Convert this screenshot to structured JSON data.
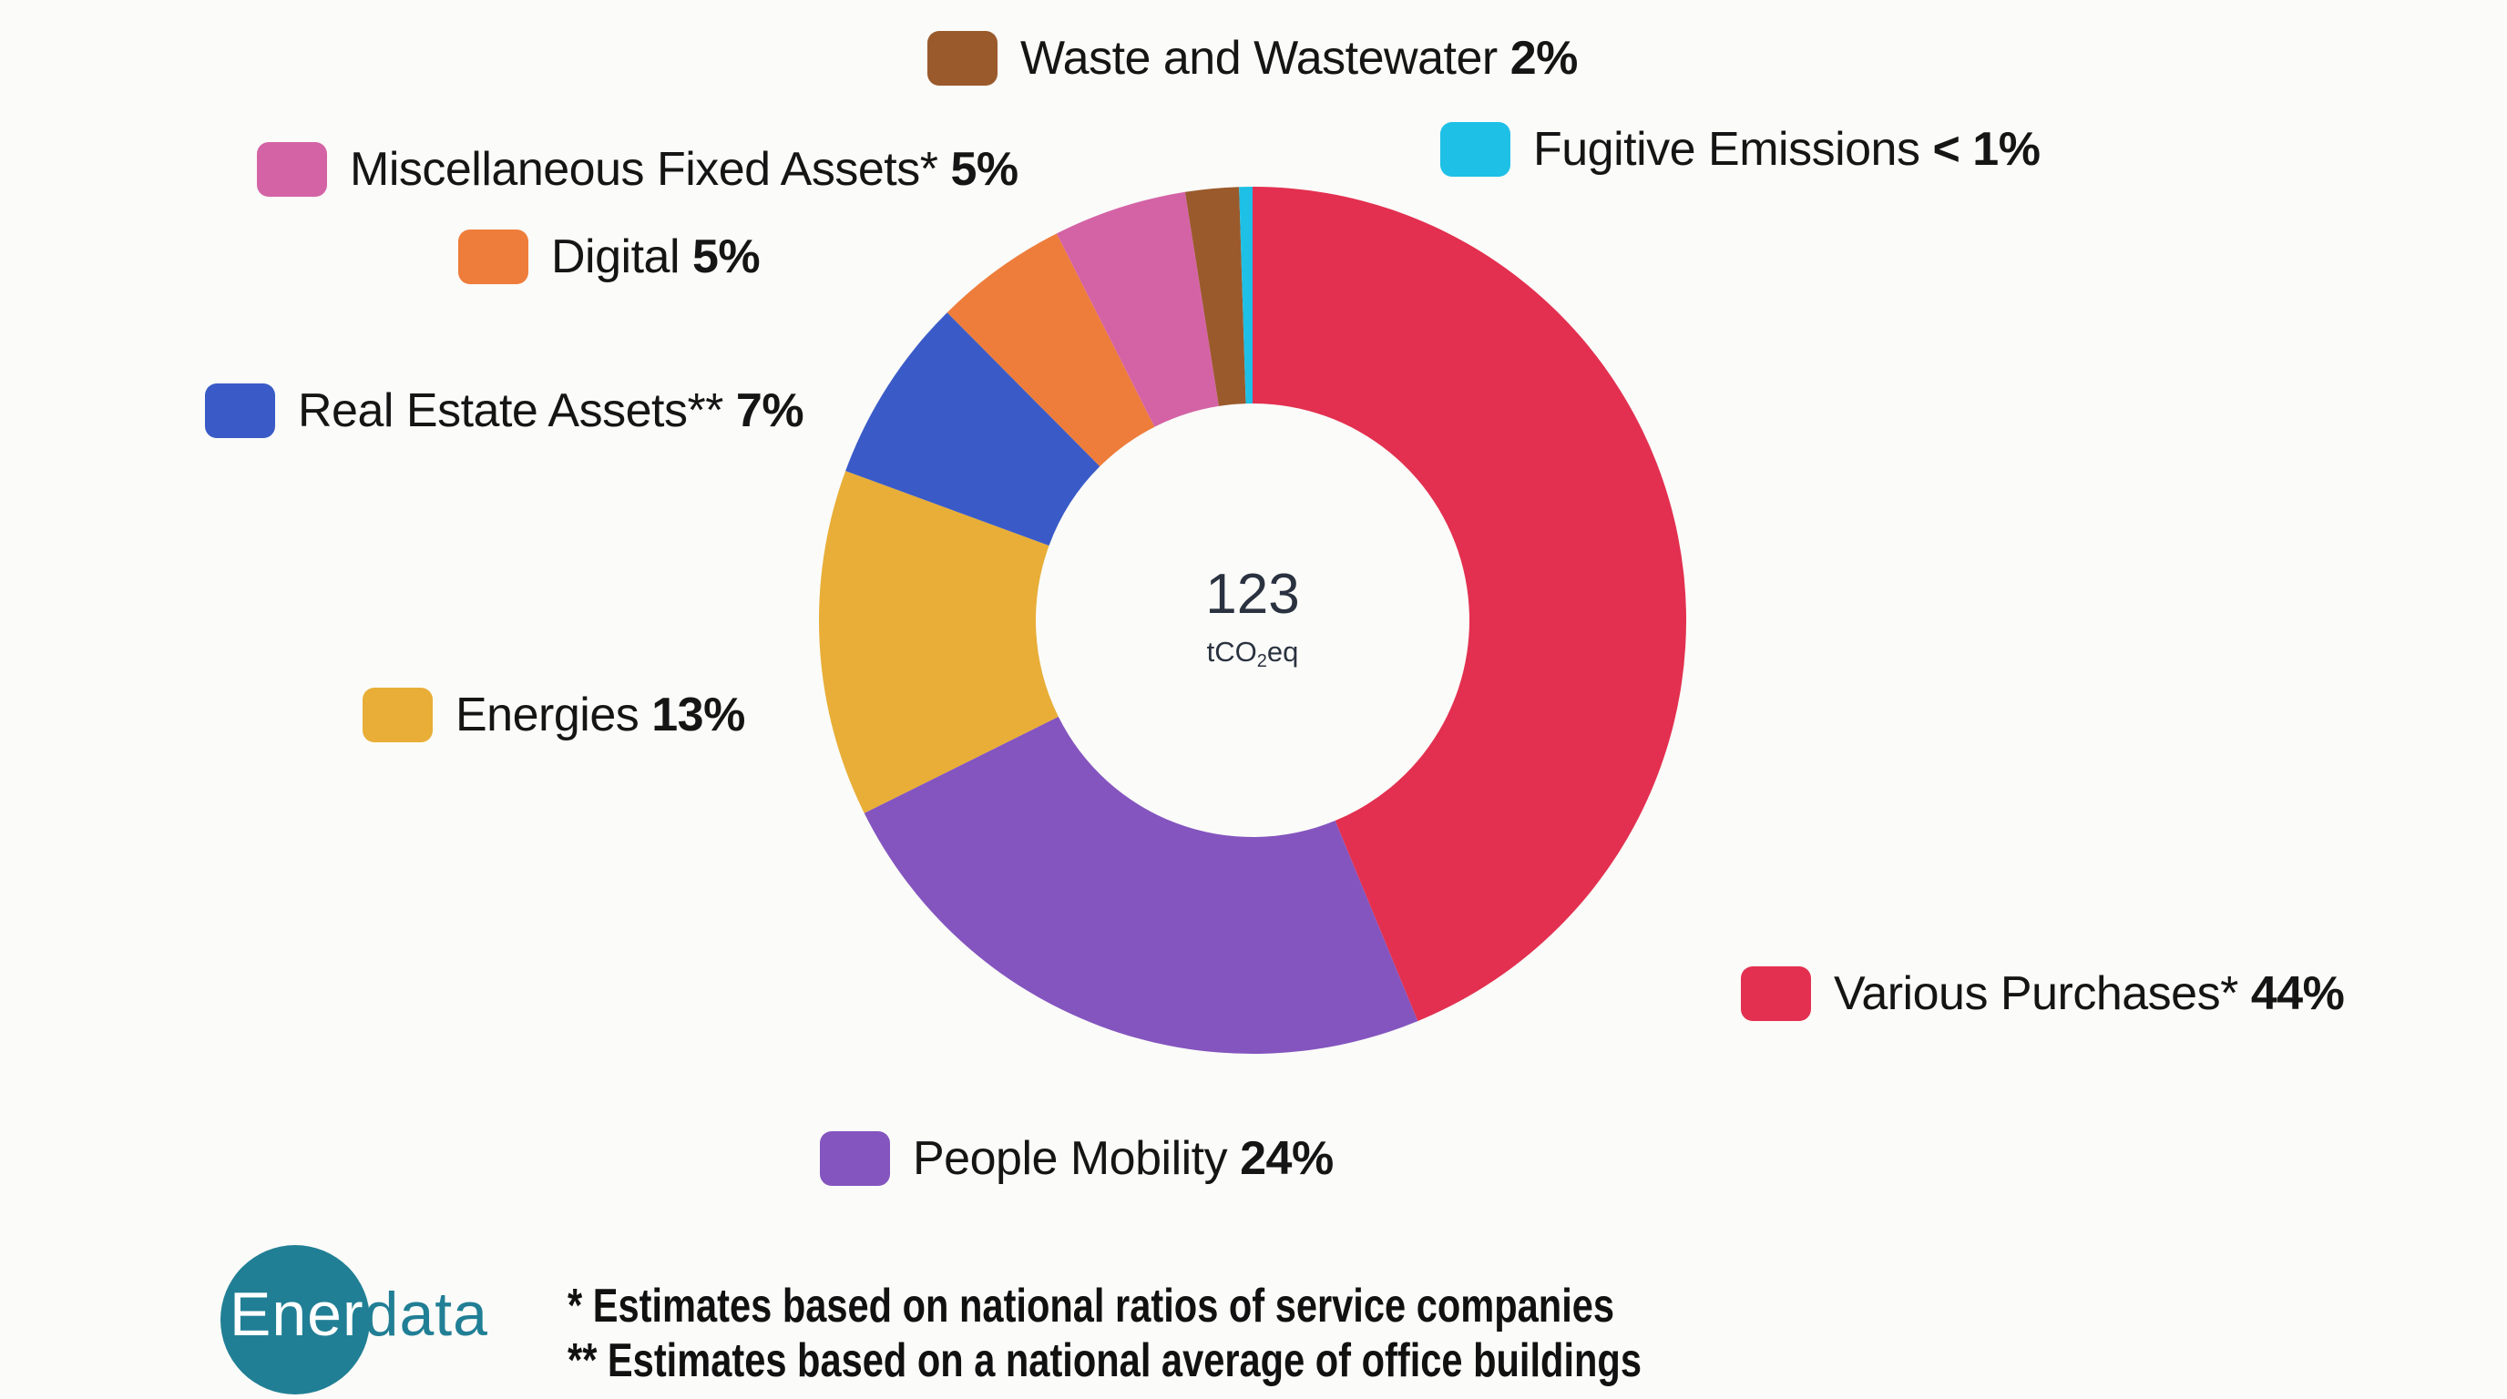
{
  "chart_data": {
    "type": "pie",
    "subtype": "donut",
    "title": "",
    "center_label": {
      "value": "123",
      "unit_prefix": "tCO",
      "unit_sub": "2",
      "unit_suffix": "eq"
    },
    "categories": [
      "Various Purchases*",
      "People Mobility",
      "Energies",
      "Real Estate Assets**",
      "Digital",
      "Miscellaneous Fixed Assets*",
      "Waste and Wastewater",
      "Fugitive Emissions"
    ],
    "values": [
      44,
      24,
      13,
      7,
      5,
      5,
      2,
      0.5
    ],
    "value_labels": [
      "44%",
      "24%",
      "13%",
      "7%",
      "5%",
      "5%",
      "2%",
      "< 1%"
    ],
    "colors": [
      "#e33050",
      "#8455bf",
      "#e8ae37",
      "#3a5bc7",
      "#ee7d3b",
      "#d463a6",
      "#9a5a2c",
      "#1ec0e6"
    ],
    "start_angle_deg": 0,
    "direction": "clockwise",
    "legend_position": "around"
  },
  "legend": {
    "waste": {
      "label": "Waste and Wastewater",
      "pct": "2%",
      "color": "#9a5a2c"
    },
    "fugitive": {
      "label": "Fugitive Emissions",
      "pct": "< 1%",
      "color": "#1ec0e6"
    },
    "misc": {
      "label": "Miscellaneous Fixed Assets*",
      "pct": "5%",
      "color": "#d463a6"
    },
    "digital": {
      "label": "Digital",
      "pct": "5%",
      "color": "#ee7d3b"
    },
    "real_estate": {
      "label": "Real Estate Assets**",
      "pct": "7%",
      "color": "#3a5bc7"
    },
    "energies": {
      "label": "Energies",
      "pct": "13%",
      "color": "#e8ae37"
    },
    "various": {
      "label": "Various Purchases*",
      "pct": "44%",
      "color": "#e33050"
    },
    "people": {
      "label": "People Mobility",
      "pct": "24%",
      "color": "#8455bf"
    }
  },
  "center": {
    "value": "123",
    "unit_prefix": "tCO",
    "unit_sub": "2",
    "unit_suffix": "eq"
  },
  "logo": {
    "part1": "Ener",
    "part2": "data"
  },
  "footnotes": [
    "* Estimates based on national ratios of service companies",
    "** Estimates based on a national average of office buildings"
  ]
}
